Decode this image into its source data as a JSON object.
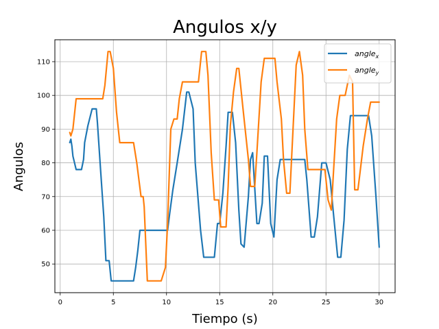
{
  "chart_data": {
    "type": "line",
    "title": "Angulos x/y",
    "xlabel": "Tiempo (s)",
    "ylabel": "Angulos",
    "xlim": [
      -0.5,
      31.5
    ],
    "ylim": [
      41.5,
      116.5
    ],
    "xticks": [
      0,
      5,
      10,
      15,
      20,
      25,
      30
    ],
    "yticks": [
      50,
      60,
      70,
      80,
      90,
      100,
      110
    ],
    "grid": true,
    "legend_position": "top-right",
    "series": [
      {
        "name": "angle_x",
        "legend_base": "angle",
        "legend_sub": "x",
        "color": "#1f77b4",
        "x": [
          0.9,
          1.0,
          1.1,
          1.2,
          1.5,
          2.0,
          2.2,
          2.3,
          2.6,
          3.0,
          3.4,
          3.5,
          3.8,
          4.1,
          4.3,
          4.6,
          4.8,
          5.0,
          6.0,
          6.9,
          7.1,
          7.3,
          7.5,
          8.0,
          9.0,
          9.9,
          10.1,
          10.3,
          10.6,
          11.0,
          11.5,
          11.9,
          12.1,
          12.5,
          12.7,
          13.2,
          13.5,
          13.8,
          14.5,
          14.8,
          15.0,
          15.3,
          15.6,
          15.8,
          16.2,
          16.5,
          16.8,
          17.0,
          17.3,
          17.7,
          17.9,
          18.1,
          18.5,
          18.7,
          19.0,
          19.2,
          19.5,
          19.8,
          20.1,
          20.4,
          20.7,
          21.0,
          22.0,
          23.0,
          23.2,
          23.6,
          23.9,
          24.2,
          24.6,
          25.0,
          25.4,
          25.7,
          26.1,
          26.4,
          26.7,
          27.0,
          27.3,
          27.5,
          28.0,
          29.0,
          29.3,
          29.7,
          30.0
        ],
        "y": [
          86,
          87,
          85,
          82,
          78,
          78,
          81,
          86,
          91,
          96,
          96,
          92,
          78,
          64,
          51,
          51,
          45,
          45,
          45,
          45,
          49,
          54,
          60,
          60,
          60,
          60,
          60,
          65,
          72,
          80,
          90,
          101,
          101,
          96,
          80,
          60,
          52,
          52,
          52,
          62,
          62,
          71,
          85,
          95,
          95,
          86,
          66,
          56,
          55,
          70,
          81,
          83,
          62,
          62,
          68,
          82,
          82,
          62,
          58,
          75,
          81,
          81,
          81,
          81,
          75,
          58,
          58,
          64,
          80,
          80,
          75,
          65,
          52,
          52,
          63,
          84,
          94,
          94,
          94,
          94,
          88,
          70,
          55
        ]
      },
      {
        "name": "angle_y",
        "legend_base": "angle",
        "legend_sub": "y",
        "color": "#ff7f0e",
        "x": [
          0.9,
          1.0,
          1.2,
          1.5,
          2.0,
          3.0,
          4.0,
          4.2,
          4.5,
          4.7,
          5.0,
          5.3,
          5.6,
          6.0,
          6.9,
          7.2,
          7.6,
          7.8,
          7.9,
          8.2,
          8.4,
          8.8,
          9.5,
          9.9,
          10.1,
          10.4,
          10.7,
          11.0,
          11.2,
          11.5,
          12.0,
          13.0,
          13.3,
          13.7,
          13.9,
          14.2,
          14.5,
          14.9,
          15.1,
          15.6,
          15.8,
          16.0,
          16.3,
          16.6,
          16.8,
          17.2,
          17.7,
          17.9,
          18.3,
          18.5,
          18.9,
          19.2,
          19.5,
          20.2,
          20.4,
          20.8,
          21.0,
          21.3,
          21.6,
          21.9,
          22.2,
          22.5,
          22.8,
          23.0,
          23.3,
          24.0,
          24.6,
          24.9,
          25.2,
          25.5,
          25.7,
          26.0,
          26.3,
          26.8,
          27.2,
          27.5,
          27.7,
          28.0,
          28.2,
          28.5,
          28.9,
          29.2,
          29.7,
          30.0
        ],
        "y": [
          89,
          88,
          90,
          99,
          99,
          99,
          99,
          103,
          113,
          113,
          108,
          95,
          86,
          86,
          86,
          80,
          70,
          70,
          67,
          45,
          45,
          45,
          45,
          49,
          62,
          90,
          93,
          93,
          99,
          104,
          104,
          104,
          113,
          113,
          106,
          83,
          69,
          69,
          61,
          61,
          73,
          91,
          101,
          108,
          108,
          96,
          81,
          73,
          73,
          83,
          104,
          111,
          111,
          111,
          104,
          93,
          81,
          71,
          71,
          90,
          109,
          113,
          106,
          90,
          78,
          78,
          78,
          78,
          69,
          66,
          77,
          93,
          100,
          100,
          106,
          104,
          72,
          72,
          77,
          85,
          93,
          98,
          98,
          98
        ]
      }
    ]
  }
}
